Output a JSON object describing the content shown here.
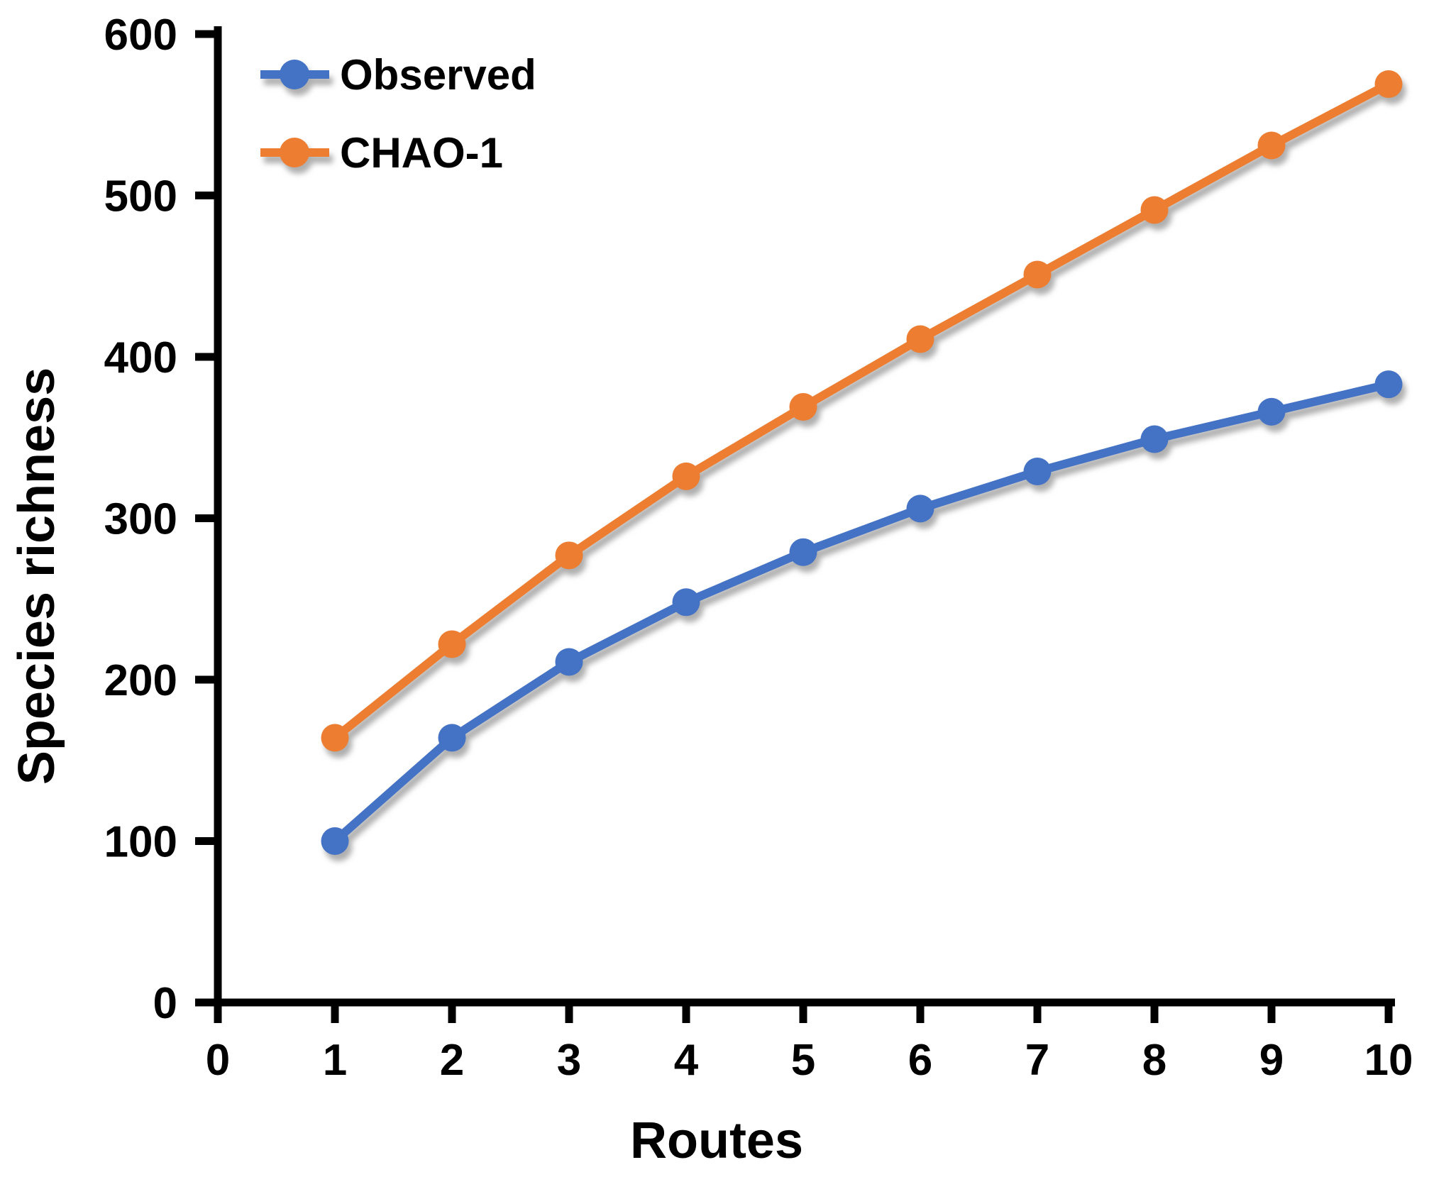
{
  "chart_data": {
    "type": "line",
    "title": "",
    "xlabel": "Routes",
    "ylabel": "Species richness",
    "x": [
      1,
      2,
      3,
      4,
      5,
      6,
      7,
      8,
      9,
      10
    ],
    "x_ticks": [
      0,
      1,
      2,
      3,
      4,
      5,
      6,
      7,
      8,
      9,
      10
    ],
    "y_ticks": [
      0,
      100,
      200,
      300,
      400,
      500,
      600
    ],
    "xlim": [
      0,
      10
    ],
    "ylim": [
      0,
      600
    ],
    "grid": false,
    "legend_position": "top-left",
    "axis_color": "#000000",
    "series": [
      {
        "name": "Observed",
        "color": "#4472C4",
        "values": [
          100,
          164,
          211,
          248,
          279,
          306,
          329,
          349,
          366,
          383
        ]
      },
      {
        "name": "CHAO-1",
        "color": "#ED7D31",
        "values": [
          164,
          222,
          277,
          326,
          369,
          411,
          451,
          491,
          531,
          569
        ]
      }
    ]
  }
}
